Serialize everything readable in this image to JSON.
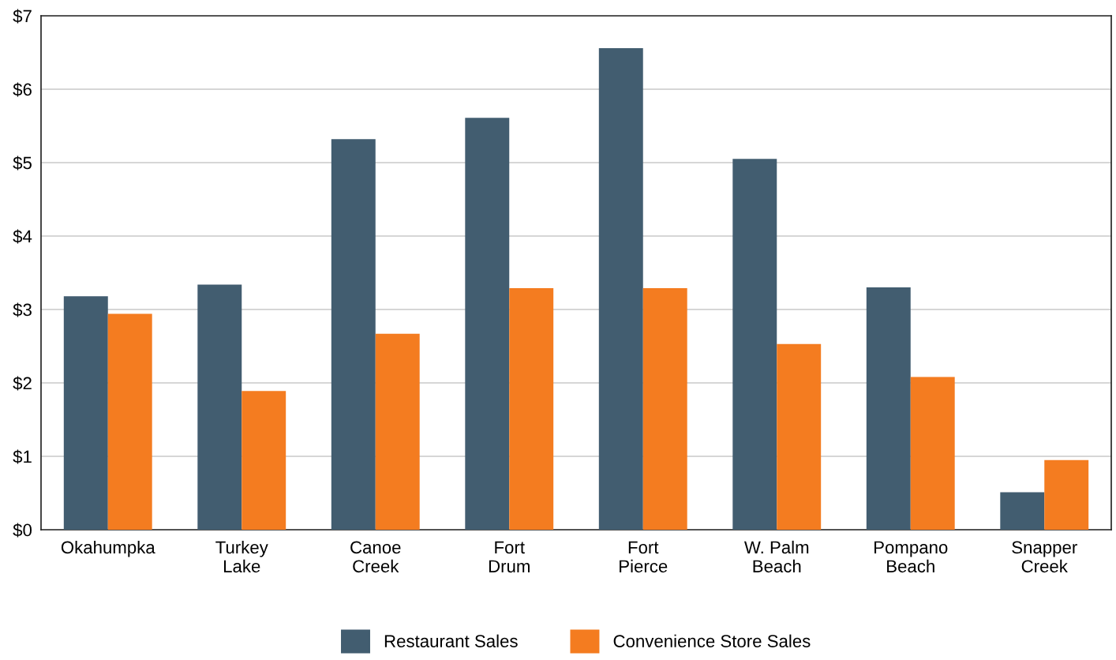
{
  "chart_data": {
    "type": "bar",
    "categories": [
      "Okahumpka",
      "Turkey\nLake",
      "Canoe\nCreek",
      "Fort\nDrum",
      "Fort\nPierce",
      "W. Palm\nBeach",
      "Pompano\nBeach",
      "Snapper\nCreek"
    ],
    "series": [
      {
        "name": "Restaurant Sales",
        "color": "#425d70",
        "values": [
          3.18,
          3.34,
          5.32,
          5.61,
          6.56,
          5.05,
          3.3,
          0.51
        ]
      },
      {
        "name": "Convenience Store Sales",
        "color": "#f47c20",
        "values": [
          2.94,
          1.89,
          2.67,
          3.29,
          3.29,
          2.53,
          2.08,
          0.95
        ]
      }
    ],
    "ylim": [
      0,
      7
    ],
    "yticks": [
      {
        "value": 0,
        "label": "$0"
      },
      {
        "value": 1,
        "label": "$1"
      },
      {
        "value": 2,
        "label": "$2"
      },
      {
        "value": 3,
        "label": "$3"
      },
      {
        "value": 4,
        "label": "$4"
      },
      {
        "value": 5,
        "label": "$5"
      },
      {
        "value": 6,
        "label": "$6"
      },
      {
        "value": 7,
        "label": "$7"
      }
    ],
    "grid": "y",
    "legend": "bottom"
  }
}
